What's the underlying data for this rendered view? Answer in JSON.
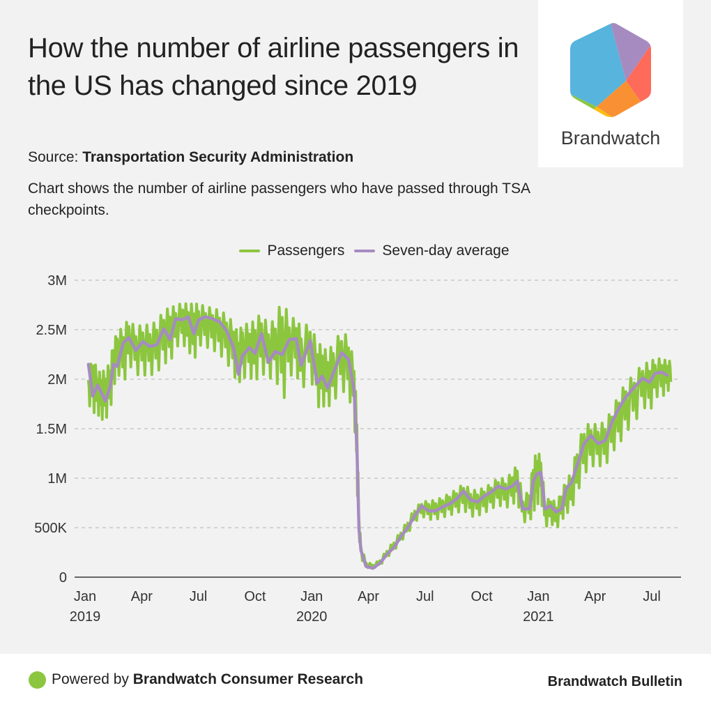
{
  "header": {
    "title": "How the number of airline passengers in the US has changed since 2019",
    "source_label": "Source:",
    "source_name": "Transportation Security Administration",
    "description": "Chart shows the number of airline passengers who have passed through TSA checkpoints."
  },
  "logo": {
    "name": "Brandwatch",
    "colors": {
      "blue": "#56b4dd",
      "purple": "#a68bc1",
      "red": "#fe6b5a",
      "orange": "#f99133",
      "yellow": "#fdbd11",
      "green": "#8cc63f"
    }
  },
  "footer": {
    "powered_prefix": "Powered by",
    "powered_name": "Brandwatch Consumer Research",
    "bulletin": "Brandwatch Bulletin",
    "dot_color": "#8cc63f"
  },
  "chart_data": {
    "type": "line",
    "title": "How the number of airline passengers in the US has changed since 2019",
    "xlabel": "",
    "ylabel": "",
    "x_unit": "months since Jan 2019",
    "xlim": [
      -0.55,
      31.5
    ],
    "ylim": [
      0,
      3000000
    ],
    "grid": true,
    "legend_position": "top-center",
    "y_ticks": [
      {
        "value": 0,
        "label": "0"
      },
      {
        "value": 500000,
        "label": "500K"
      },
      {
        "value": 1000000,
        "label": "1M"
      },
      {
        "value": 1500000,
        "label": "1.5M"
      },
      {
        "value": 2000000,
        "label": "2M"
      },
      {
        "value": 2500000,
        "label": "2.5M"
      },
      {
        "value": 3000000,
        "label": "3M"
      }
    ],
    "x_ticks": [
      {
        "value": 0,
        "label": "Jan",
        "sublabel": "2019"
      },
      {
        "value": 3,
        "label": "Apr",
        "sublabel": ""
      },
      {
        "value": 6,
        "label": "Jul",
        "sublabel": ""
      },
      {
        "value": 9,
        "label": "Oct",
        "sublabel": ""
      },
      {
        "value": 12,
        "label": "Jan",
        "sublabel": "2020"
      },
      {
        "value": 15,
        "label": "Apr",
        "sublabel": ""
      },
      {
        "value": 18,
        "label": "Jul",
        "sublabel": ""
      },
      {
        "value": 21,
        "label": "Oct",
        "sublabel": ""
      },
      {
        "value": 24,
        "label": "Jan",
        "sublabel": "2021"
      },
      {
        "value": 27,
        "label": "Apr",
        "sublabel": ""
      },
      {
        "value": 30,
        "label": "Jul",
        "sublabel": ""
      }
    ],
    "series": [
      {
        "name": "Seven-day average",
        "color": "#a68bc1",
        "points": [
          [
            0.18,
            2150000
          ],
          [
            0.41,
            1830000
          ],
          [
            0.66,
            1940000
          ],
          [
            0.85,
            1870000
          ],
          [
            1.07,
            1780000
          ],
          [
            1.33,
            1920000
          ],
          [
            1.51,
            2150000
          ],
          [
            1.7,
            2130000
          ],
          [
            2.03,
            2370000
          ],
          [
            2.32,
            2420000
          ],
          [
            2.69,
            2290000
          ],
          [
            3.06,
            2380000
          ],
          [
            3.43,
            2330000
          ],
          [
            3.8,
            2350000
          ],
          [
            4.17,
            2510000
          ],
          [
            4.5,
            2400000
          ],
          [
            4.8,
            2610000
          ],
          [
            5.17,
            2600000
          ],
          [
            5.46,
            2630000
          ],
          [
            5.76,
            2460000
          ],
          [
            6.01,
            2600000
          ],
          [
            6.38,
            2630000
          ],
          [
            6.75,
            2610000
          ],
          [
            7.12,
            2580000
          ],
          [
            7.49,
            2490000
          ],
          [
            7.86,
            2320000
          ],
          [
            8.12,
            2050000
          ],
          [
            8.34,
            2240000
          ],
          [
            8.71,
            2320000
          ],
          [
            9.0,
            2260000
          ],
          [
            9.34,
            2460000
          ],
          [
            9.71,
            2170000
          ],
          [
            10.07,
            2280000
          ],
          [
            10.44,
            2250000
          ],
          [
            10.81,
            2400000
          ],
          [
            11.18,
            2410000
          ],
          [
            11.44,
            2140000
          ],
          [
            11.92,
            2390000
          ],
          [
            12.29,
            1960000
          ],
          [
            12.55,
            2030000
          ],
          [
            12.84,
            1910000
          ],
          [
            13.14,
            2060000
          ],
          [
            13.58,
            2270000
          ],
          [
            13.95,
            2200000
          ],
          [
            14.24,
            1890000
          ],
          [
            14.39,
            1320000
          ],
          [
            14.5,
            480000
          ],
          [
            14.61,
            270000
          ],
          [
            14.87,
            110000
          ],
          [
            15.24,
            90000
          ],
          [
            15.61,
            140000
          ],
          [
            15.98,
            230000
          ],
          [
            16.35,
            300000
          ],
          [
            16.72,
            410000
          ],
          [
            17.08,
            500000
          ],
          [
            17.45,
            620000
          ],
          [
            17.82,
            720000
          ],
          [
            18.19,
            670000
          ],
          [
            18.56,
            670000
          ],
          [
            18.93,
            710000
          ],
          [
            19.3,
            740000
          ],
          [
            19.67,
            790000
          ],
          [
            20.04,
            870000
          ],
          [
            20.41,
            780000
          ],
          [
            20.78,
            760000
          ],
          [
            21.14,
            820000
          ],
          [
            21.51,
            860000
          ],
          [
            21.88,
            920000
          ],
          [
            22.25,
            890000
          ],
          [
            22.62,
            920000
          ],
          [
            22.88,
            970000
          ],
          [
            23.17,
            690000
          ],
          [
            23.54,
            690000
          ],
          [
            23.73,
            970000
          ],
          [
            23.91,
            1040000
          ],
          [
            24.13,
            1060000
          ],
          [
            24.35,
            690000
          ],
          [
            24.65,
            720000
          ],
          [
            24.94,
            660000
          ],
          [
            25.24,
            690000
          ],
          [
            25.46,
            890000
          ],
          [
            25.76,
            960000
          ],
          [
            26.05,
            1130000
          ],
          [
            26.42,
            1350000
          ],
          [
            26.79,
            1430000
          ],
          [
            27.16,
            1350000
          ],
          [
            27.53,
            1380000
          ],
          [
            27.9,
            1570000
          ],
          [
            28.27,
            1710000
          ],
          [
            28.63,
            1820000
          ],
          [
            29.08,
            1920000
          ],
          [
            29.52,
            2010000
          ],
          [
            29.89,
            1970000
          ],
          [
            30.18,
            2060000
          ],
          [
            30.55,
            2070000
          ],
          [
            30.81,
            2040000
          ]
        ]
      },
      {
        "name": "Passengers",
        "color": "#8cc63f",
        "weekly_range_note": "daily values oscillate within weekly low/high",
        "weekly": [
          [
            0.18,
            1720000,
            2060000
          ],
          [
            0.41,
            1600000,
            2270000
          ],
          [
            0.66,
            1600000,
            2100000
          ],
          [
            0.85,
            1540000,
            2100000
          ],
          [
            1.07,
            1530000,
            2120000
          ],
          [
            1.33,
            1620000,
            2200000
          ],
          [
            1.51,
            1850000,
            2400000
          ],
          [
            1.7,
            2030000,
            2500000
          ],
          [
            2.03,
            1870000,
            2560000
          ],
          [
            2.32,
            2100000,
            2640000
          ],
          [
            2.69,
            1990000,
            2540000
          ],
          [
            3.06,
            1980000,
            2590000
          ],
          [
            3.43,
            1980000,
            2570000
          ],
          [
            3.8,
            2000000,
            2620000
          ],
          [
            4.17,
            2100000,
            2720000
          ],
          [
            4.5,
            2100000,
            2760000
          ],
          [
            4.8,
            2280000,
            2760000
          ],
          [
            5.17,
            2300000,
            2800000
          ],
          [
            5.46,
            2250000,
            2780000
          ],
          [
            5.76,
            2100000,
            2800000
          ],
          [
            6.01,
            2300000,
            2780000
          ],
          [
            6.38,
            2280000,
            2760000
          ],
          [
            6.75,
            2250000,
            2740000
          ],
          [
            7.12,
            2200000,
            2720000
          ],
          [
            7.49,
            2120000,
            2680000
          ],
          [
            7.86,
            1980000,
            2600000
          ],
          [
            8.12,
            1900000,
            2480000
          ],
          [
            8.34,
            1950000,
            2600000
          ],
          [
            8.71,
            1960000,
            2580000
          ],
          [
            9.0,
            1900000,
            2640000
          ],
          [
            9.34,
            2000000,
            2700000
          ],
          [
            9.71,
            1930000,
            2580000
          ],
          [
            10.07,
            1980000,
            2640000
          ],
          [
            10.44,
            1600000,
            2880000
          ],
          [
            10.81,
            1960000,
            2660000
          ],
          [
            11.18,
            2000000,
            2640000
          ],
          [
            11.44,
            1800000,
            2560000
          ],
          [
            11.92,
            1980000,
            2600000
          ],
          [
            12.29,
            1640000,
            2400000
          ],
          [
            12.55,
            1660000,
            2380000
          ],
          [
            12.84,
            1650000,
            2300000
          ],
          [
            13.14,
            1700000,
            2400000
          ],
          [
            13.58,
            1830000,
            2520000
          ],
          [
            13.95,
            1740000,
            2460000
          ],
          [
            14.24,
            1600000,
            2200000
          ],
          [
            14.39,
            900000,
            1700000
          ],
          [
            14.5,
            400000,
            620000
          ],
          [
            14.61,
            180000,
            330000
          ],
          [
            14.87,
            90000,
            160000
          ],
          [
            15.24,
            87000,
            130000
          ],
          [
            15.61,
            110000,
            180000
          ],
          [
            15.98,
            190000,
            280000
          ],
          [
            16.35,
            250000,
            370000
          ],
          [
            16.72,
            350000,
            470000
          ],
          [
            17.08,
            420000,
            580000
          ],
          [
            17.45,
            540000,
            700000
          ],
          [
            17.82,
            600000,
            770000
          ],
          [
            18.19,
            560000,
            780000
          ],
          [
            18.56,
            560000,
            790000
          ],
          [
            18.93,
            580000,
            820000
          ],
          [
            19.3,
            600000,
            860000
          ],
          [
            19.67,
            620000,
            900000
          ],
          [
            20.04,
            650000,
            960000
          ],
          [
            20.41,
            580000,
            900000
          ],
          [
            20.78,
            590000,
            890000
          ],
          [
            21.14,
            620000,
            920000
          ],
          [
            21.51,
            660000,
            960000
          ],
          [
            21.88,
            700000,
            1020000
          ],
          [
            22.25,
            660000,
            1010000
          ],
          [
            22.62,
            700000,
            1080000
          ],
          [
            22.88,
            720000,
            1160000
          ],
          [
            23.17,
            530000,
            820000
          ],
          [
            23.54,
            520000,
            900000
          ],
          [
            23.73,
            600000,
            1200000
          ],
          [
            23.91,
            650000,
            1300000
          ],
          [
            24.13,
            760000,
            1250000
          ],
          [
            24.35,
            470000,
            780000
          ],
          [
            24.65,
            520000,
            820000
          ],
          [
            24.94,
            450000,
            760000
          ],
          [
            25.24,
            540000,
            880000
          ],
          [
            25.46,
            600000,
            1000000
          ],
          [
            25.76,
            640000,
            1080000
          ],
          [
            26.05,
            790000,
            1350000
          ],
          [
            26.42,
            980000,
            1560000
          ],
          [
            26.79,
            1070000,
            1580000
          ],
          [
            27.16,
            1080000,
            1560000
          ],
          [
            27.53,
            1060000,
            1600000
          ],
          [
            27.9,
            1210000,
            1720000
          ],
          [
            28.27,
            1280000,
            1880000
          ],
          [
            28.63,
            1410000,
            1990000
          ],
          [
            29.08,
            1490000,
            2080000
          ],
          [
            29.52,
            1680000,
            2180000
          ],
          [
            29.89,
            1600000,
            2200000
          ],
          [
            30.18,
            1780000,
            2230000
          ],
          [
            30.55,
            1770000,
            2230000
          ],
          [
            30.81,
            1850000,
            2200000
          ]
        ]
      }
    ]
  }
}
